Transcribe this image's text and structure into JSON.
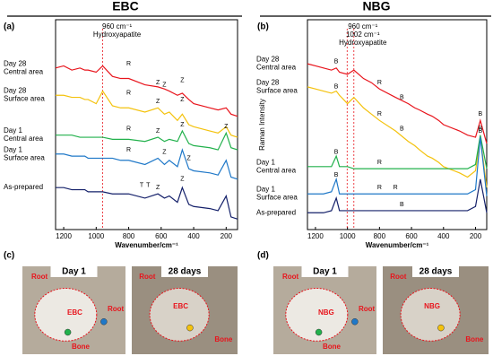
{
  "chart_data": [
    {
      "type": "line",
      "panel": "(a)",
      "header": "EBC",
      "xlabel": "Wavenumber/cm⁻¹",
      "x": [
        1250,
        1200,
        1150,
        1100,
        1070,
        1050,
        1000,
        960,
        900,
        850,
        800,
        700,
        620,
        580,
        550,
        500,
        470,
        430,
        400,
        300,
        250,
        200,
        170,
        130
      ],
      "xlim": [
        1250,
        130
      ],
      "xticks": [
        1200,
        1000,
        800,
        600,
        400,
        200
      ],
      "ylim": [
        0,
        100
      ],
      "ref_lines": [
        960
      ],
      "annotations": [
        "960 cm⁻¹",
        "Hydroxyapatite"
      ],
      "peak_labels": [
        {
          "text": "R",
          "x": 800,
          "y": 79
        },
        {
          "text": "R",
          "x": 800,
          "y": 65
        },
        {
          "text": "Z",
          "x": 620,
          "y": 70
        },
        {
          "text": "Z",
          "x": 580,
          "y": 69
        },
        {
          "text": "Z",
          "x": 470,
          "y": 71
        },
        {
          "text": "Z",
          "x": 620,
          "y": 61
        },
        {
          "text": "Z",
          "x": 470,
          "y": 62
        },
        {
          "text": "R",
          "x": 800,
          "y": 48
        },
        {
          "text": "Z",
          "x": 620,
          "y": 47
        },
        {
          "text": "Z",
          "x": 470,
          "y": 50
        },
        {
          "text": "Z",
          "x": 200,
          "y": 49
        },
        {
          "text": "R",
          "x": 800,
          "y": 38
        },
        {
          "text": "Z",
          "x": 580,
          "y": 37
        },
        {
          "text": "Z",
          "x": 430,
          "y": 34
        },
        {
          "text": "T",
          "x": 720,
          "y": 21
        },
        {
          "text": "T",
          "x": 680,
          "y": 21
        },
        {
          "text": "Z",
          "x": 620,
          "y": 20
        },
        {
          "text": "Z",
          "x": 470,
          "y": 24
        }
      ],
      "series": [
        {
          "name": "Day 28\nCentral area",
          "color": "#e8141c",
          "values": [
            77,
            78,
            76,
            77,
            76,
            76,
            75,
            78,
            73,
            72,
            72,
            69,
            68,
            67,
            66,
            64,
            65,
            62,
            60,
            58,
            57,
            58,
            55,
            54
          ]
        },
        {
          "name": "Day 28\nSurface area",
          "color": "#f4c20d",
          "values": [
            64,
            64,
            63,
            63,
            62,
            62,
            60,
            66,
            59,
            58,
            58,
            56,
            58,
            55,
            56,
            52,
            55,
            50,
            49,
            47,
            46,
            49,
            45,
            44
          ]
        },
        {
          "name": "Day 1\nCentral area",
          "color": "#22b14c",
          "values": [
            45,
            45,
            45,
            44,
            44,
            44,
            44,
            44,
            43,
            43,
            43,
            42,
            44,
            42,
            43,
            42,
            47,
            41,
            40,
            39,
            38,
            46,
            39,
            38
          ]
        },
        {
          "name": "Day 1\nSurface area",
          "color": "#1f78c8",
          "values": [
            36,
            36,
            35,
            35,
            35,
            34,
            34,
            34,
            34,
            33,
            33,
            31,
            34,
            31,
            33,
            30,
            38,
            29,
            28,
            27,
            26,
            33,
            25,
            24
          ]
        },
        {
          "name": "As-prepared",
          "color": "#14206a",
          "values": [
            20,
            20,
            19,
            19,
            19,
            18,
            18,
            18,
            17,
            17,
            17,
            15,
            17,
            15,
            16,
            13,
            20,
            12,
            11,
            10,
            9,
            16,
            6,
            5
          ]
        }
      ]
    },
    {
      "type": "line",
      "panel": "(b)",
      "header": "NBG",
      "xlabel": "Wavenumber/cm⁻¹",
      "ylabel": "Raman Intensity",
      "x": [
        1250,
        1200,
        1150,
        1100,
        1070,
        1050,
        1000,
        960,
        900,
        850,
        800,
        700,
        620,
        580,
        550,
        500,
        470,
        430,
        400,
        300,
        250,
        200,
        170,
        130
      ],
      "xlim": [
        1250,
        130
      ],
      "xticks": [
        1200,
        1000,
        800,
        600,
        400,
        200
      ],
      "ylim": [
        0,
        100
      ],
      "ref_lines": [
        960,
        1002
      ],
      "annotations": [
        "960 cm⁻¹",
        "1002 cm⁻¹",
        "Hydroxyapatite"
      ],
      "peak_labels": [
        {
          "text": "B",
          "x": 1070,
          "y": 80
        },
        {
          "text": "R",
          "x": 800,
          "y": 70
        },
        {
          "text": "B",
          "x": 660,
          "y": 63
        },
        {
          "text": "B",
          "x": 170,
          "y": 55
        },
        {
          "text": "B",
          "x": 1070,
          "y": 68
        },
        {
          "text": "R",
          "x": 800,
          "y": 55
        },
        {
          "text": "B",
          "x": 660,
          "y": 48
        },
        {
          "text": "B",
          "x": 170,
          "y": 47
        },
        {
          "text": "B",
          "x": 1070,
          "y": 37
        },
        {
          "text": "R",
          "x": 800,
          "y": 32
        },
        {
          "text": "B",
          "x": 170,
          "y": 48
        },
        {
          "text": "B",
          "x": 1070,
          "y": 26
        },
        {
          "text": "R",
          "x": 800,
          "y": 20
        },
        {
          "text": "R",
          "x": 700,
          "y": 20
        },
        {
          "text": "B",
          "x": 660,
          "y": 12
        }
      ],
      "series": [
        {
          "name": "Day 28\nCentral area",
          "color": "#e8141c",
          "values": [
            79,
            78,
            77,
            76,
            77,
            75,
            74,
            76,
            72,
            70,
            67,
            63,
            60,
            58,
            57,
            55,
            54,
            52,
            50,
            47,
            45,
            44,
            52,
            41
          ]
        },
        {
          "name": "Day 28\nSurface area",
          "color": "#f4c20d",
          "values": [
            68,
            67,
            66,
            65,
            66,
            64,
            60,
            63,
            58,
            55,
            52,
            47,
            42,
            40,
            38,
            35,
            34,
            32,
            30,
            27,
            25,
            28,
            44,
            20
          ]
        },
        {
          "name": "Day 1\nCentral area",
          "color": "#22b14c",
          "values": [
            30,
            30,
            30,
            30,
            35,
            30,
            30,
            29,
            29,
            29,
            29,
            29,
            29,
            29,
            29,
            29,
            29,
            29,
            29,
            29,
            29,
            31,
            45,
            29
          ]
        },
        {
          "name": "Day 1\nSurface area",
          "color": "#1f78c8",
          "values": [
            17,
            17,
            17,
            18,
            24,
            17,
            17,
            17,
            17,
            17,
            17,
            17,
            17,
            17,
            17,
            17,
            17,
            17,
            17,
            17,
            17,
            19,
            44,
            16
          ]
        },
        {
          "name": "As-prepared",
          "color": "#14206a",
          "values": [
            8,
            8,
            8,
            9,
            15,
            9,
            9,
            9,
            9,
            9,
            9,
            9,
            9,
            9,
            9,
            9,
            9,
            9,
            9,
            9,
            9,
            11,
            24,
            8
          ]
        }
      ]
    }
  ],
  "photos": [
    {
      "panel": "(c)",
      "images": [
        {
          "title": "Day 1",
          "labels": [
            "Root",
            "Root",
            "EBC",
            "Bone"
          ]
        },
        {
          "title": "28 days",
          "labels": [
            "Root",
            "EBC",
            "Bone"
          ]
        }
      ]
    },
    {
      "panel": "(d)",
      "images": [
        {
          "title": "Day 1",
          "labels": [
            "Root",
            "Root",
            "NBG",
            "Bone"
          ]
        },
        {
          "title": "28 days",
          "labels": [
            "Root",
            "NBG",
            "Bone"
          ]
        }
      ]
    }
  ]
}
